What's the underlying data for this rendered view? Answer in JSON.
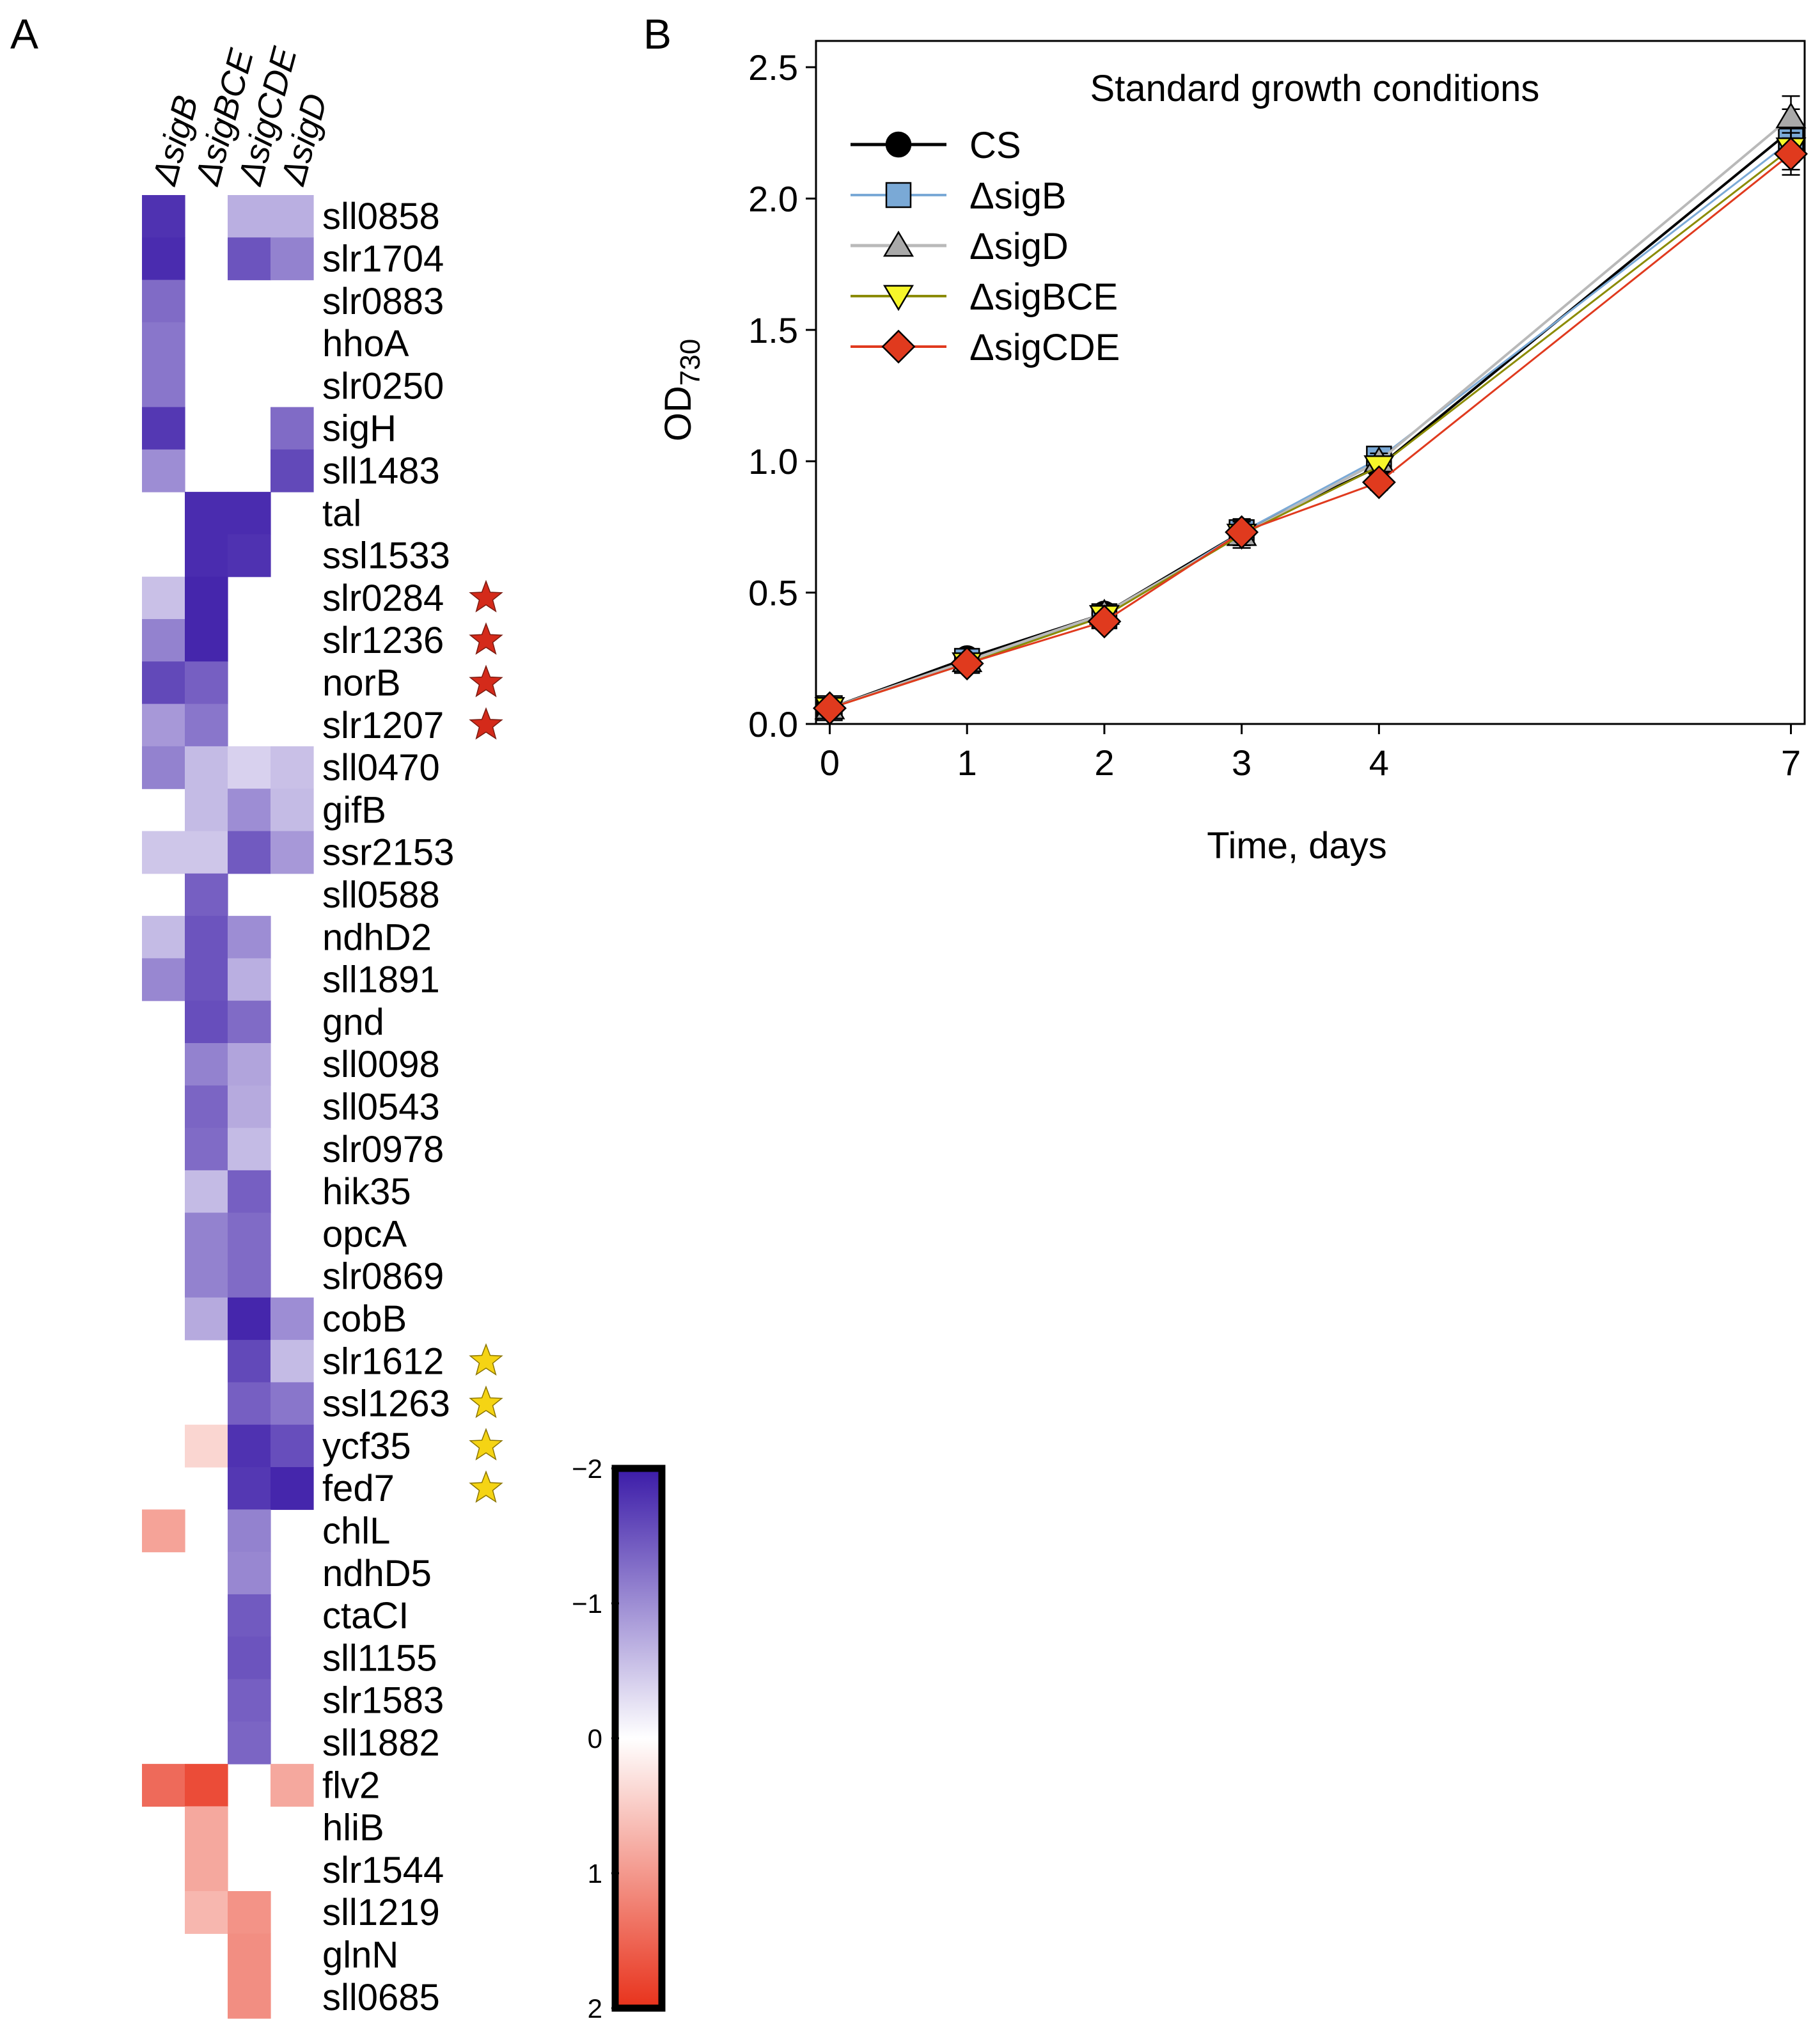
{
  "panel_a": {
    "letter": "A",
    "columns": [
      "ΔsigB",
      "ΔsigBCE",
      "ΔsigCDE",
      "ΔsigD"
    ],
    "column_italic_parts": [
      "sigB",
      "sigBCE",
      "sigCDE",
      "sigD"
    ],
    "colorbar": {
      "ticks": [
        "−2",
        "−1",
        "0",
        "1",
        "2"
      ],
      "range": [
        -2,
        2
      ],
      "colors": {
        "negative": "#3b1ba8",
        "zero": "#ffffff",
        "positive": "#e8321b"
      }
    },
    "star_colors": {
      "red": "#d42a1a",
      "yellow": "#f5d414"
    },
    "genes": [
      {
        "name": "sll0858",
        "values": [
          -1.8,
          null,
          -0.7,
          -0.7
        ],
        "star": null
      },
      {
        "name": "slr1704",
        "values": [
          -1.85,
          null,
          -1.5,
          -1.1
        ],
        "star": null
      },
      {
        "name": "slr0883",
        "values": [
          -1.3,
          null,
          null,
          null
        ],
        "star": null
      },
      {
        "name": "hhoA",
        "values": [
          -1.2,
          null,
          null,
          null
        ],
        "star": null
      },
      {
        "name": "slr0250",
        "values": [
          -1.2,
          null,
          null,
          null
        ],
        "star": null
      },
      {
        "name": "sigH",
        "values": [
          -1.75,
          null,
          null,
          -1.3
        ],
        "star": null
      },
      {
        "name": "sll1483",
        "values": [
          -1.0,
          null,
          null,
          -1.6
        ],
        "star": null
      },
      {
        "name": "tal",
        "values": [
          null,
          -1.85,
          -1.85,
          null
        ],
        "star": null
      },
      {
        "name": "ssl1533",
        "values": [
          null,
          -1.85,
          -1.8,
          null
        ],
        "star": null
      },
      {
        "name": "slr0284",
        "values": [
          -0.55,
          -1.9,
          null,
          null
        ],
        "star": "red"
      },
      {
        "name": "slr1236",
        "values": [
          -1.1,
          -1.9,
          null,
          null
        ],
        "star": "red"
      },
      {
        "name": "norB",
        "values": [
          -1.6,
          -1.4,
          null,
          null
        ],
        "star": "red"
      },
      {
        "name": "slr1207",
        "values": [
          -0.9,
          -1.2,
          null,
          null
        ],
        "star": "red"
      },
      {
        "name": "sll0470",
        "values": [
          -1.1,
          -0.6,
          -0.4,
          -0.55
        ],
        "star": null
      },
      {
        "name": "gifB",
        "values": [
          null,
          -0.6,
          -1.0,
          -0.6
        ],
        "star": null
      },
      {
        "name": "ssr2153",
        "values": [
          -0.5,
          -0.5,
          -1.45,
          -0.9
        ],
        "star": null
      },
      {
        "name": "sll0588",
        "values": [
          null,
          -1.4,
          null,
          null
        ],
        "star": null
      },
      {
        "name": "ndhD2",
        "values": [
          -0.6,
          -1.5,
          -1.0,
          null
        ],
        "star": null
      },
      {
        "name": "sll1891",
        "values": [
          -1.05,
          -1.5,
          -0.7,
          null
        ],
        "star": null
      },
      {
        "name": "gnd",
        "values": [
          null,
          -1.55,
          -1.3,
          null
        ],
        "star": null
      },
      {
        "name": "sll0098",
        "values": [
          null,
          -1.1,
          -0.8,
          null
        ],
        "star": null
      },
      {
        "name": "sll0543",
        "values": [
          null,
          -1.35,
          -0.75,
          null
        ],
        "star": null
      },
      {
        "name": "slr0978",
        "values": [
          null,
          -1.3,
          -0.6,
          null
        ],
        "star": null
      },
      {
        "name": "hik35",
        "values": [
          null,
          -0.6,
          -1.4,
          null
        ],
        "star": null
      },
      {
        "name": "opcA",
        "values": [
          null,
          -1.1,
          -1.3,
          null
        ],
        "star": null
      },
      {
        "name": "slr0869",
        "values": [
          null,
          -1.1,
          -1.3,
          null
        ],
        "star": null
      },
      {
        "name": "cobB",
        "values": [
          null,
          -0.75,
          -1.9,
          -1.0
        ],
        "star": null
      },
      {
        "name": "slr1612",
        "values": [
          null,
          null,
          -1.6,
          -0.6
        ],
        "star": "yellow"
      },
      {
        "name": "ssl1263",
        "values": [
          null,
          null,
          -1.4,
          -1.2
        ],
        "star": "yellow"
      },
      {
        "name": "ycf35",
        "values": [
          null,
          0.4,
          -1.8,
          -1.55
        ],
        "star": "yellow"
      },
      {
        "name": "fed7",
        "values": [
          null,
          null,
          -1.75,
          -1.9
        ],
        "star": "yellow"
      },
      {
        "name": "chlL",
        "values": [
          0.9,
          null,
          -1.1,
          null
        ],
        "star": null
      },
      {
        "name": "ndhD5",
        "values": [
          null,
          null,
          -1.05,
          null
        ],
        "star": null
      },
      {
        "name": "ctaCI",
        "values": [
          null,
          null,
          -1.45,
          null
        ],
        "star": null
      },
      {
        "name": "sll1155",
        "values": [
          null,
          null,
          -1.5,
          null
        ],
        "star": null
      },
      {
        "name": "slr1583",
        "values": [
          null,
          null,
          -1.4,
          null
        ],
        "star": null
      },
      {
        "name": "sll1882",
        "values": [
          null,
          null,
          -1.35,
          null
        ],
        "star": null
      },
      {
        "name": "flv2",
        "values": [
          1.45,
          1.75,
          null,
          0.85
        ],
        "star": null
      },
      {
        "name": "hliB",
        "values": [
          null,
          0.85,
          null,
          null
        ],
        "star": null
      },
      {
        "name": "slr1544",
        "values": [
          null,
          0.85,
          null,
          null
        ],
        "star": null
      },
      {
        "name": "sll1219",
        "values": [
          null,
          0.7,
          1.05,
          null
        ],
        "star": null
      },
      {
        "name": "glnN",
        "values": [
          null,
          null,
          1.1,
          null
        ],
        "star": null
      },
      {
        "name": "sll0685",
        "values": [
          null,
          null,
          1.1,
          null
        ],
        "star": null
      }
    ]
  },
  "panel_b": {
    "letter": "B",
    "chart_data": {
      "type": "line",
      "title": "Standard growth conditions",
      "xlabel": "Time, days",
      "ylabel": "OD",
      "ylabel_subscript": "730",
      "xlim": [
        -0.1,
        7.1
      ],
      "ylim": [
        0.0,
        2.6
      ],
      "x_ticks": [
        0,
        1,
        2,
        3,
        4,
        7
      ],
      "x_tick_labels": [
        "0",
        "1",
        "2",
        "3",
        "4",
        "7"
      ],
      "y_ticks": [
        0.0,
        0.5,
        1.0,
        1.5,
        2.0,
        2.5
      ],
      "y_tick_labels": [
        "0.0",
        "0.5",
        "1.0",
        "1.5",
        "2.0",
        "2.5"
      ],
      "x": [
        0,
        1,
        2,
        3,
        4,
        7
      ],
      "legend_position": "top-left",
      "series": [
        {
          "name": "CS",
          "marker": "circle",
          "line_color": "#000000",
          "fill_color": "#000000",
          "line_width": 4,
          "values": [
            0.06,
            0.25,
            0.42,
            0.73,
            0.98,
            2.26
          ],
          "errors": [
            0.02,
            0.02,
            0.03,
            0.05,
            0.03,
            0.08
          ]
        },
        {
          "name": "ΔsigB",
          "marker": "square",
          "line_color": "#7aa9d6",
          "fill_color": "#7aa9d6",
          "line_width": 3,
          "values": [
            0.06,
            0.24,
            0.41,
            0.73,
            1.01,
            2.22
          ],
          "errors": [
            0.02,
            0.02,
            0.03,
            0.05,
            0.03,
            0.08
          ]
        },
        {
          "name": "ΔsigD",
          "marker": "triangle-up",
          "line_color": "#b9b9b9",
          "fill_color": "#a9a9a9",
          "line_width": 4,
          "values": [
            0.06,
            0.24,
            0.42,
            0.72,
            1.0,
            2.31
          ],
          "errors": [
            0.02,
            0.02,
            0.03,
            0.05,
            0.03,
            0.08
          ]
        },
        {
          "name": "ΔsigBCE",
          "marker": "triangle-down",
          "line_color": "#8b8b00",
          "fill_color": "#f6f62a",
          "line_width": 3,
          "values": [
            0.06,
            0.23,
            0.41,
            0.72,
            0.98,
            2.19
          ],
          "errors": [
            0.02,
            0.02,
            0.03,
            0.05,
            0.03,
            0.08
          ]
        },
        {
          "name": "ΔsigCDE",
          "marker": "diamond",
          "line_color": "#e03a1e",
          "fill_color": "#e03a1e",
          "line_width": 3,
          "values": [
            0.06,
            0.23,
            0.39,
            0.73,
            0.92,
            2.17
          ],
          "errors": [
            0.02,
            0.02,
            0.03,
            0.05,
            0.03,
            0.08
          ]
        }
      ]
    }
  }
}
